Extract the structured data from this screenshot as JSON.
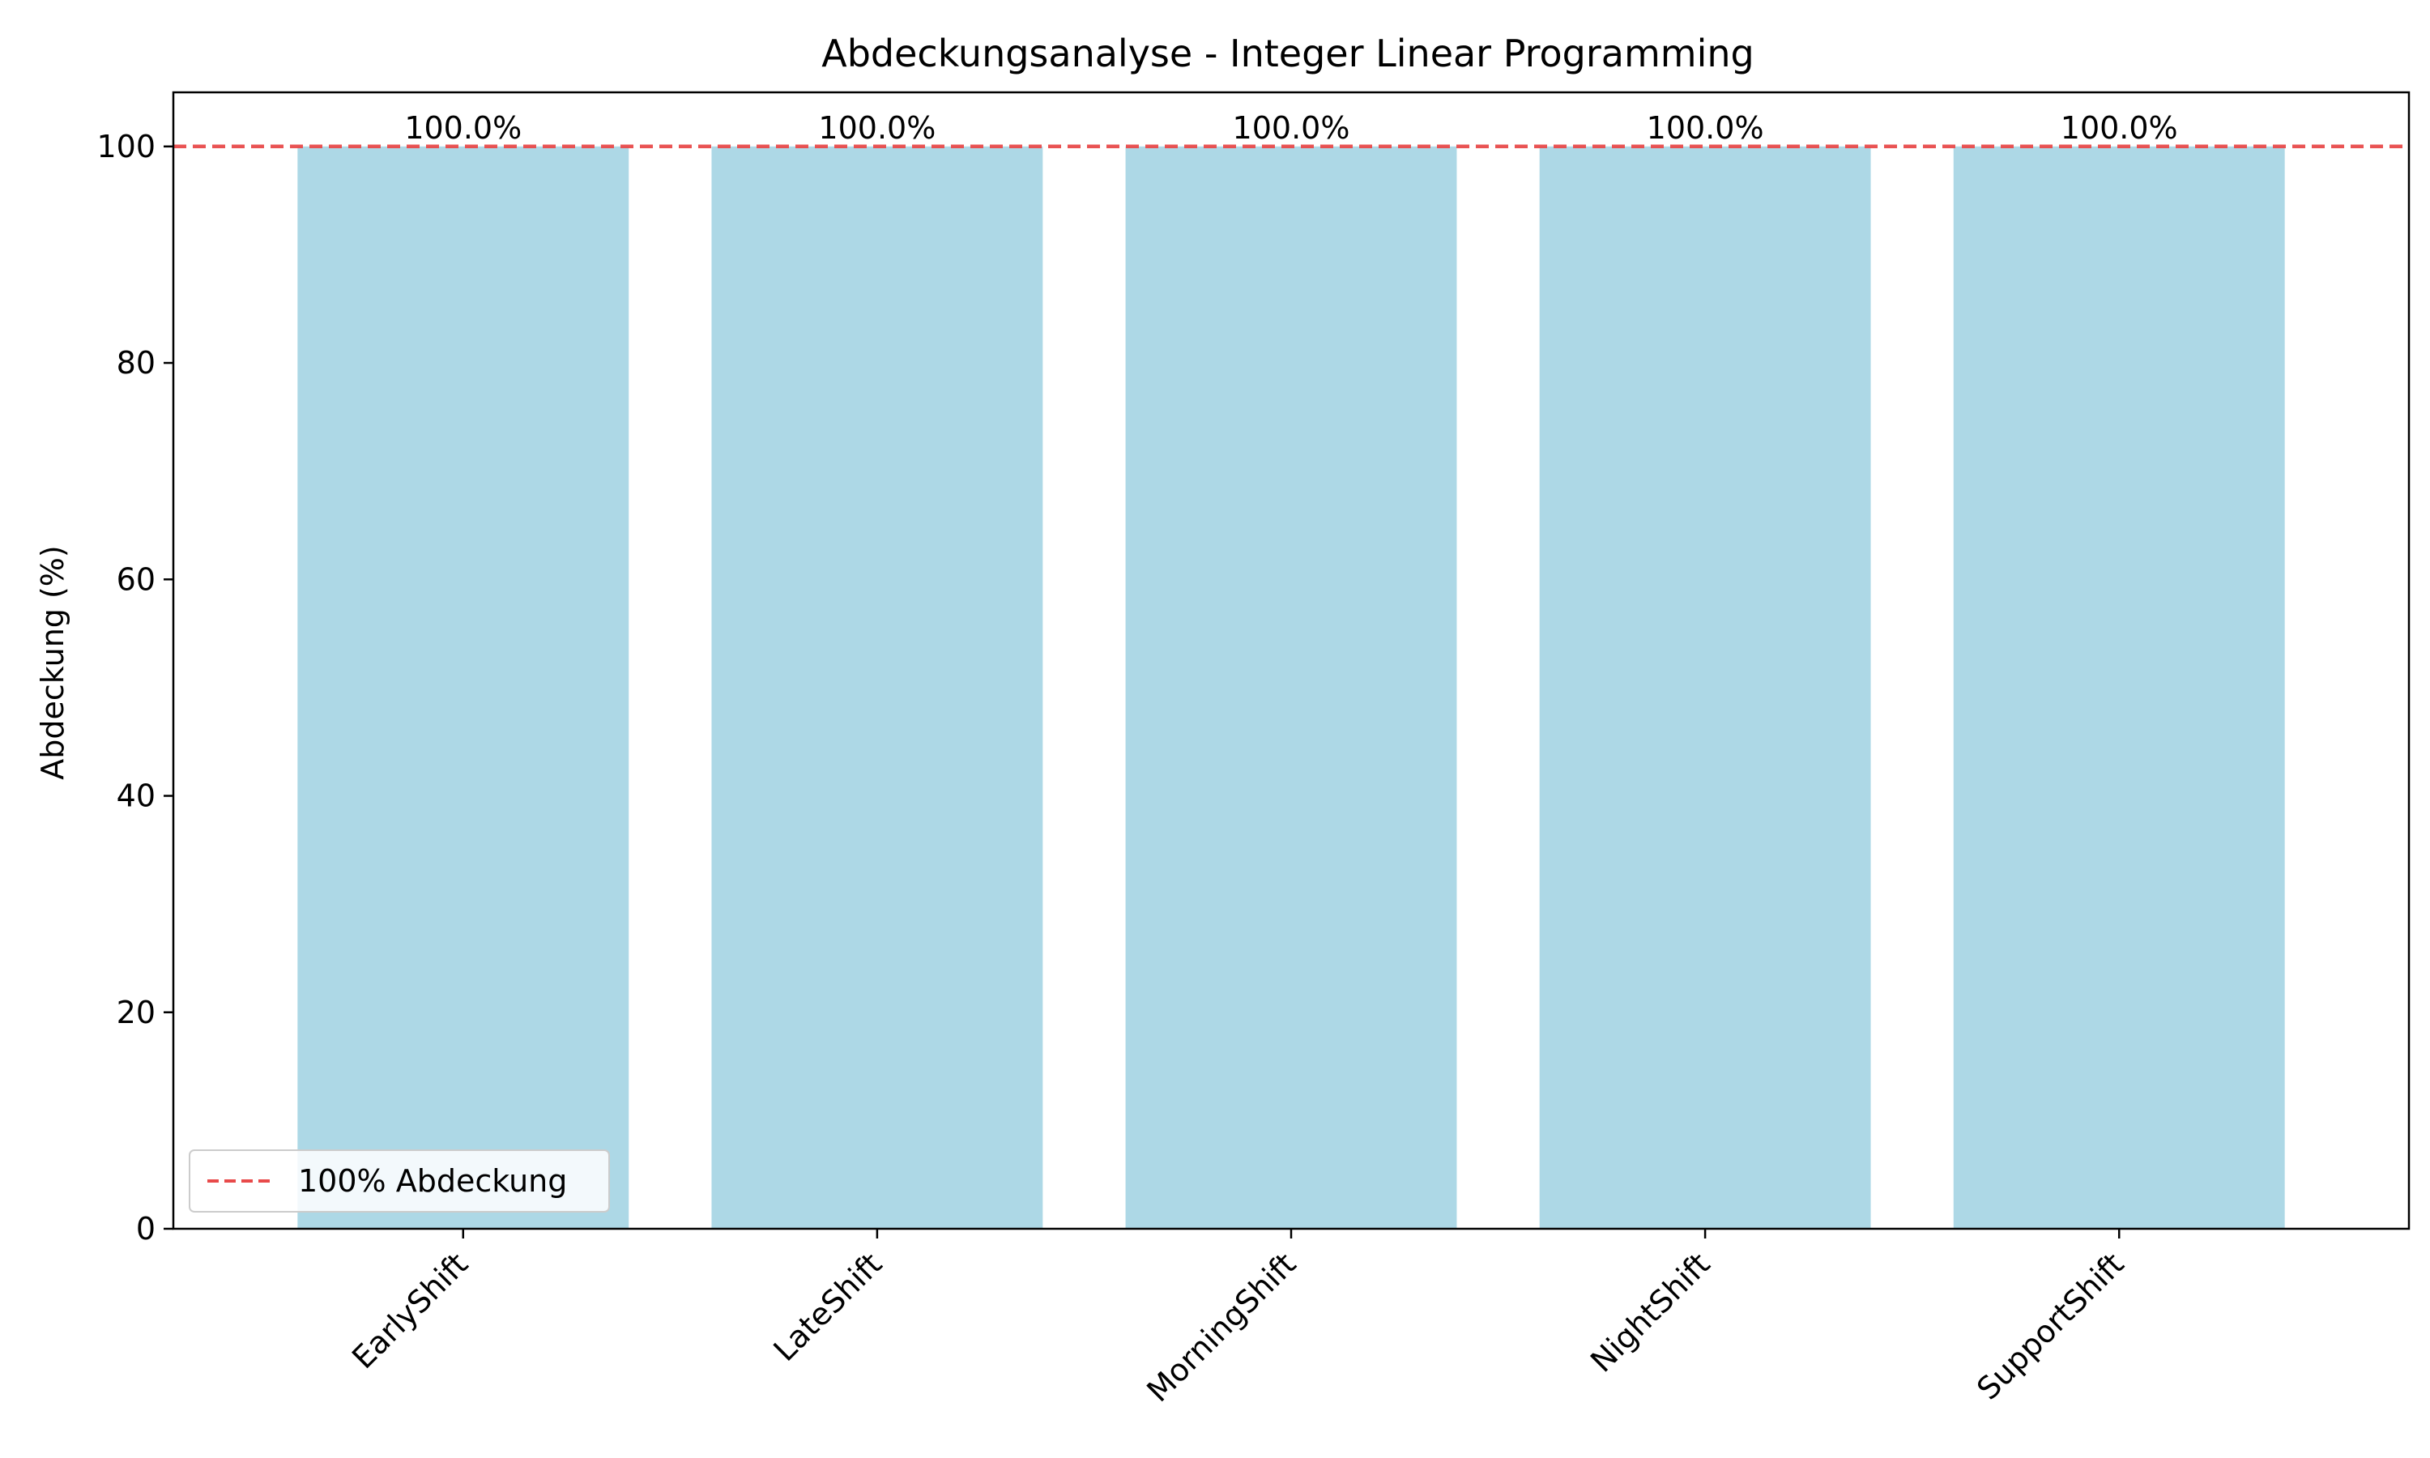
{
  "chart_data": {
    "type": "bar",
    "title": "Abdeckungsanalyse - Integer Linear Programming",
    "xlabel": "",
    "ylabel": "Abdeckung (%)",
    "categories": [
      "EarlyShift",
      "LateShift",
      "MorningShift",
      "NightShift",
      "SupportShift"
    ],
    "values": [
      100.0,
      100.0,
      100.0,
      100.0,
      100.0
    ],
    "data_labels": [
      "100.0%",
      "100.0%",
      "100.0%",
      "100.0%",
      "100.0%"
    ],
    "ylim": [
      0,
      105
    ],
    "yticks": [
      0,
      20,
      40,
      60,
      80,
      100
    ],
    "reference_line": {
      "y": 100,
      "label": "100% Abdeckung",
      "color": "#e84a4a",
      "style": "dashed"
    },
    "legend": {
      "position": "lower-left",
      "entries": [
        "100% Abdeckung"
      ]
    },
    "grid": false,
    "bar_color": "#add8e6",
    "x_tick_rotation": -45
  }
}
